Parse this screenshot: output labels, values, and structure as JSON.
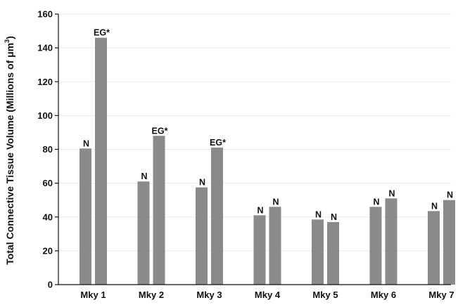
{
  "chart_data": {
    "type": "bar",
    "categories": [
      "Mky 1",
      "Mky 2",
      "Mky 3",
      "Mky 4",
      "Mky 5",
      "Mky 6",
      "Mky 7"
    ],
    "series": [
      {
        "values": [
          80.5,
          61,
          57.5,
          41,
          38.5,
          46,
          43.5
        ],
        "labels": [
          "N",
          "N",
          "N",
          "N",
          "N",
          "N",
          "N"
        ]
      },
      {
        "values": [
          146,
          88,
          81,
          46,
          37,
          51,
          50
        ],
        "labels": [
          "EG*",
          "EG*",
          "EG*",
          "N",
          "N",
          "N",
          "N"
        ]
      }
    ],
    "ylabel_main": "Total Connective Tissue Volume (Millions of μm",
    "ylabel_sup": "3",
    "ylabel_end": ")",
    "ylim": [
      0,
      160
    ],
    "yticks": [
      0,
      20,
      40,
      60,
      80,
      100,
      120,
      140,
      160
    ],
    "grid": true,
    "bar_color": "#8a8a8a"
  }
}
